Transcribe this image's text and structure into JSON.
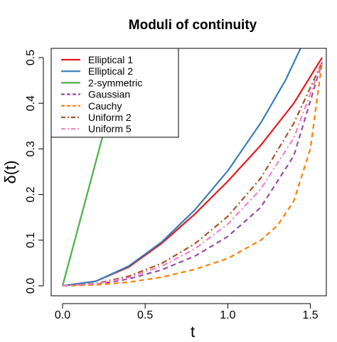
{
  "chart_data": {
    "type": "line",
    "title": "Moduli of continuity",
    "xlabel": "t",
    "ylabel": "δ(t)",
    "xlim": [
      0,
      1.5708
    ],
    "ylim": [
      0,
      0.5
    ],
    "xticks": [
      0.0,
      0.5,
      1.0,
      1.5
    ],
    "xtick_labels": [
      "0.0",
      "0.5",
      "1.0",
      "1.5"
    ],
    "yticks": [
      0.0,
      0.1,
      0.2,
      0.3,
      0.4,
      0.5
    ],
    "ytick_labels": [
      "0.0",
      "0.1",
      "0.2",
      "0.3",
      "0.4",
      "0.5"
    ],
    "grid": false,
    "legend_position": "top-left",
    "series": [
      {
        "name": "Elliptical 1",
        "color": "#e41a1c",
        "dash": "solid",
        "x": [
          0,
          0.2,
          0.4,
          0.6,
          0.8,
          1.0,
          1.2,
          1.4,
          1.5708
        ],
        "y": [
          0,
          0.01,
          0.041,
          0.093,
          0.157,
          0.229,
          0.308,
          0.4,
          0.5
        ]
      },
      {
        "name": "Elliptical 2",
        "color": "#377eb8",
        "dash": "solid",
        "x": [
          0,
          0.2,
          0.4,
          0.6,
          0.8,
          1.0,
          1.2,
          1.35,
          1.44
        ],
        "y": [
          0,
          0.01,
          0.043,
          0.096,
          0.166,
          0.252,
          0.357,
          0.451,
          0.52
        ]
      },
      {
        "name": "2-symmetric",
        "color": "#4daf4a",
        "dash": "solid",
        "x": [
          0,
          0.385
        ],
        "y": [
          0,
          0.52
        ]
      },
      {
        "name": "Gaussian",
        "color": "#984ea3",
        "dash": "dash",
        "x": [
          0,
          0.2,
          0.4,
          0.6,
          0.8,
          1.0,
          1.2,
          1.4,
          1.5708
        ],
        "y": [
          0,
          0.003,
          0.015,
          0.035,
          0.065,
          0.108,
          0.172,
          0.285,
          0.49
        ]
      },
      {
        "name": "Cauchy",
        "color": "#ff7f00",
        "dash": "dash",
        "x": [
          0,
          0.2,
          0.4,
          0.6,
          0.8,
          1.0,
          1.2,
          1.3,
          1.4,
          1.5,
          1.5708
        ],
        "y": [
          0,
          0.002,
          0.008,
          0.019,
          0.036,
          0.06,
          0.1,
          0.132,
          0.186,
          0.3,
          0.49
        ]
      },
      {
        "name": "Uniform 2",
        "color": "#a65628",
        "dash": "dashdot",
        "x": [
          0,
          0.2,
          0.4,
          0.6,
          0.8,
          1.0,
          1.2,
          1.4,
          1.5708
        ],
        "y": [
          0,
          0.005,
          0.021,
          0.049,
          0.092,
          0.152,
          0.236,
          0.356,
          0.49
        ]
      },
      {
        "name": "Uniform 5",
        "color": "#f781bf",
        "dash": "dashdot",
        "x": [
          0,
          0.2,
          0.4,
          0.6,
          0.8,
          1.0,
          1.2,
          1.4,
          1.5708
        ],
        "y": [
          0,
          0.004,
          0.018,
          0.043,
          0.081,
          0.135,
          0.212,
          0.324,
          0.49
        ]
      }
    ]
  }
}
